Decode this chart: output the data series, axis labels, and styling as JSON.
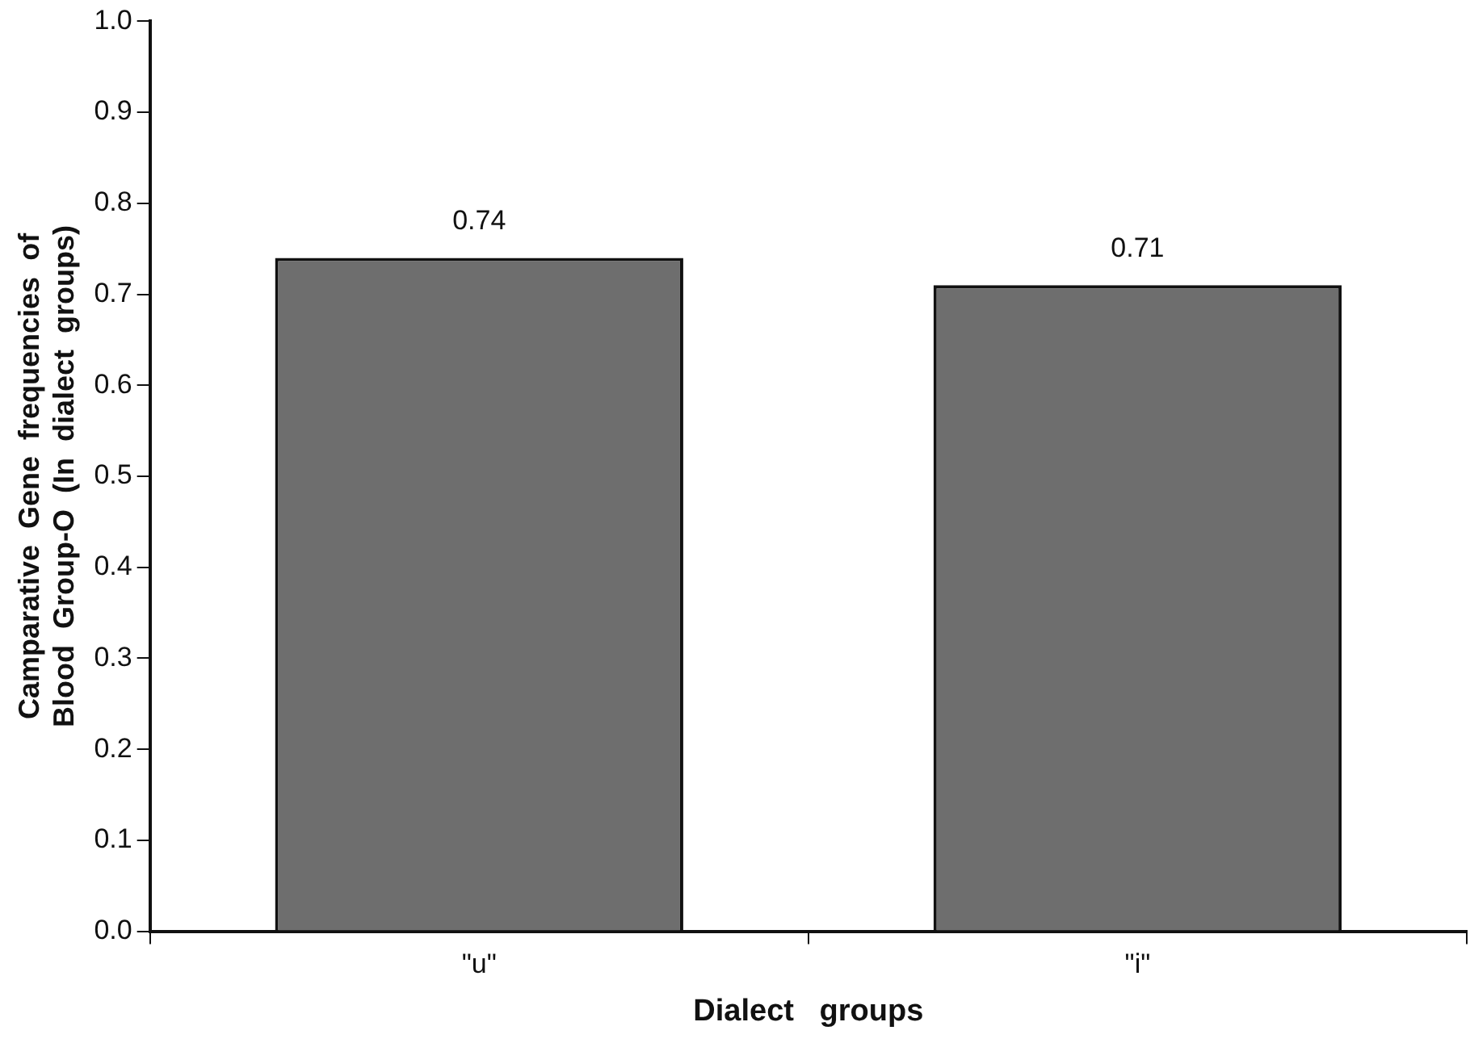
{
  "chart_data": {
    "type": "bar",
    "xlabel": "Dialect   groups",
    "ylabel": "Camparative  Gene  frequencies  of\nBlood  Group-O  (In  dialect  groups)",
    "categories": [
      "\"u\"",
      "\"i\""
    ],
    "values": [
      0.74,
      0.71
    ],
    "color": "#6e6e6e",
    "data_labels": true,
    "grid": false,
    "legend": false,
    "ylim": [
      0,
      1
    ],
    "yticks": [
      {
        "value": 0,
        "label": "0.0"
      },
      {
        "value": 0.1,
        "label": "0.1"
      },
      {
        "value": 0.2,
        "label": "0.2"
      },
      {
        "value": 0.3,
        "label": "0.3"
      },
      {
        "value": 0.4,
        "label": "0.4"
      },
      {
        "value": 0.5,
        "label": "0.5"
      },
      {
        "value": 0.6,
        "label": "0.6"
      },
      {
        "value": 0.7,
        "label": "0.7"
      },
      {
        "value": 0.8,
        "label": "0.8"
      },
      {
        "value": 0.9,
        "label": "0.9"
      },
      {
        "value": 1,
        "label": "1.0"
      }
    ]
  }
}
